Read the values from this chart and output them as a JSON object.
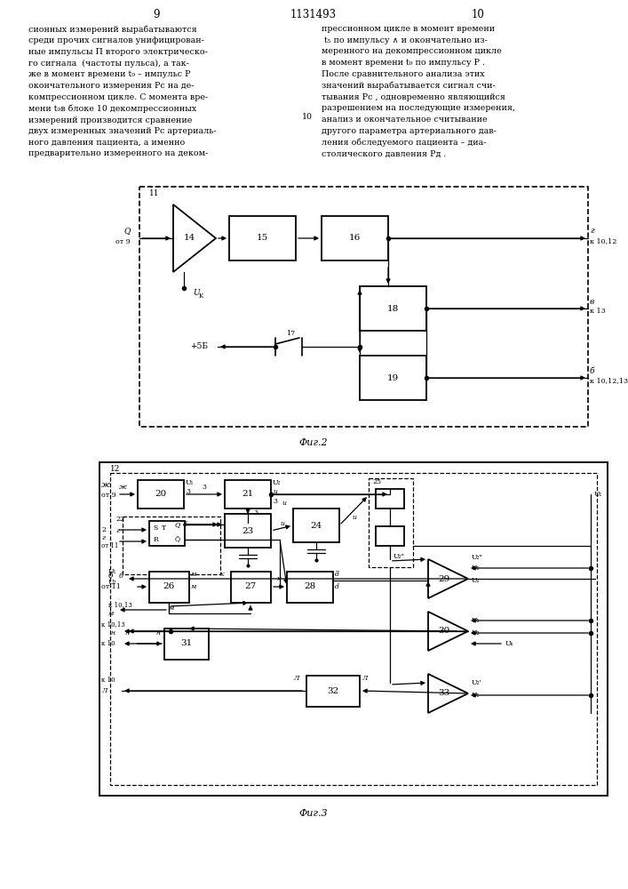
{
  "bg_color": "#ffffff",
  "page_left": "9",
  "page_right": "10",
  "title": "1131493",
  "fig2_label": "Фиг.2",
  "fig3_label": "Фиг.3",
  "left_col_text": "сионных измерений вырабатываются\nсреди прочих сигналов унифицирован-\nные импульсы П второго электрическо-\nго сигнала  (частоты пульса), а так-\nже в момент времени t₉ – импульс Р\nокончательного измерения Рс на де-\nкомпрессионном цикле. С момента вре-\nмени t₉в блоке 10 декомпрессионных\nизмерений производится сравнение\nдвух измеренных значений Рс артериаль-\nного давления пациента, а именно\nпредварительно измеренного на деком-",
  "right_col_text": "прессионном цикле в момент времени\n t₅ по импульсу ∧ и окончательно из-\nмеренного на декомпрессионном цикле\nв момент времени t₉ по импульсу Р .\nПосле сравнительного анализа этих\nзначений вырабатывается сигнал счи-\nтывания Рс , одновременно являющийся\nразрешением на последующие измерения,\nанализ и окончательное считывание\nдругого параметра артериального дав-\nления обследуемого пациента – диа-\nстолического давления Рд ."
}
